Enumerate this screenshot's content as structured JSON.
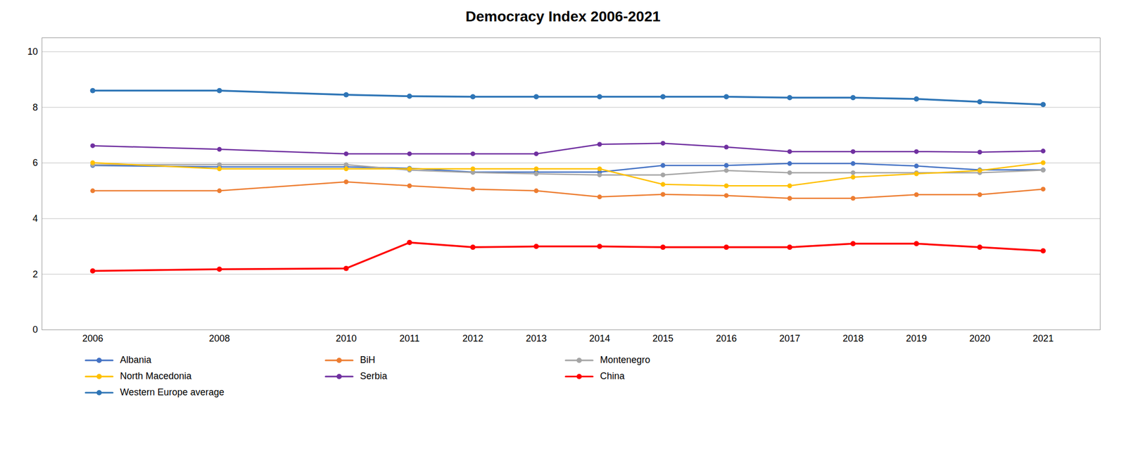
{
  "chart_data": {
    "type": "line",
    "title": "Democracy Index 2006-2021",
    "x": [
      2006,
      2008,
      2010,
      2011,
      2012,
      2013,
      2014,
      2015,
      2016,
      2017,
      2018,
      2019,
      2020,
      2021
    ],
    "series": [
      {
        "name": "Albania",
        "color": "#4472C4",
        "values": [
          5.91,
          5.86,
          5.86,
          5.81,
          5.67,
          5.67,
          5.67,
          5.91,
          5.91,
          5.98,
          5.98,
          5.89,
          5.75,
          5.75
        ]
      },
      {
        "name": "BiH",
        "color": "#ED7D31",
        "values": [
          5.0,
          5.0,
          5.32,
          5.18,
          5.06,
          5.0,
          4.78,
          4.87,
          4.83,
          4.73,
          4.73,
          4.86,
          4.86,
          5.06
        ]
      },
      {
        "name": "Montenegro",
        "color": "#A5A5A5",
        "values": [
          5.94,
          5.94,
          5.94,
          5.74,
          5.66,
          5.61,
          5.57,
          5.57,
          5.73,
          5.65,
          5.65,
          5.65,
          5.65,
          5.74
        ]
      },
      {
        "name": "North Macedonia",
        "color": "#FFC000",
        "values": [
          6.01,
          5.79,
          5.79,
          5.79,
          5.79,
          5.79,
          5.79,
          5.23,
          5.18,
          5.18,
          5.49,
          5.61,
          5.73,
          6.01
        ]
      },
      {
        "name": "Serbia",
        "color": "#7030A0",
        "values": [
          6.62,
          6.49,
          6.33,
          6.33,
          6.33,
          6.33,
          6.67,
          6.71,
          6.57,
          6.41,
          6.41,
          6.41,
          6.39,
          6.43
        ]
      },
      {
        "name": "China",
        "color": "#FF0000",
        "values": [
          2.12,
          2.18,
          2.21,
          3.14,
          2.97,
          3.0,
          3.0,
          2.97,
          2.97,
          2.97,
          3.1,
          3.1,
          2.97,
          2.84
        ]
      },
      {
        "name": "Western Europe average",
        "color": "#2E75B6",
        "values": [
          8.6,
          8.6,
          8.45,
          8.4,
          8.38,
          8.38,
          8.38,
          8.38,
          8.38,
          8.35,
          8.35,
          8.3,
          8.2,
          8.1
        ]
      }
    ],
    "xlim": [
      2005.2,
      2021.9
    ],
    "xticks": [
      2006,
      2008,
      2010,
      2011,
      2012,
      2013,
      2014,
      2015,
      2016,
      2017,
      2018,
      2019,
      2020,
      2021
    ],
    "ylim": [
      0,
      10.5
    ],
    "yticks": [
      0,
      2,
      4,
      6,
      8,
      10
    ],
    "grid": true,
    "legend": "bottom",
    "marker": "circle"
  }
}
